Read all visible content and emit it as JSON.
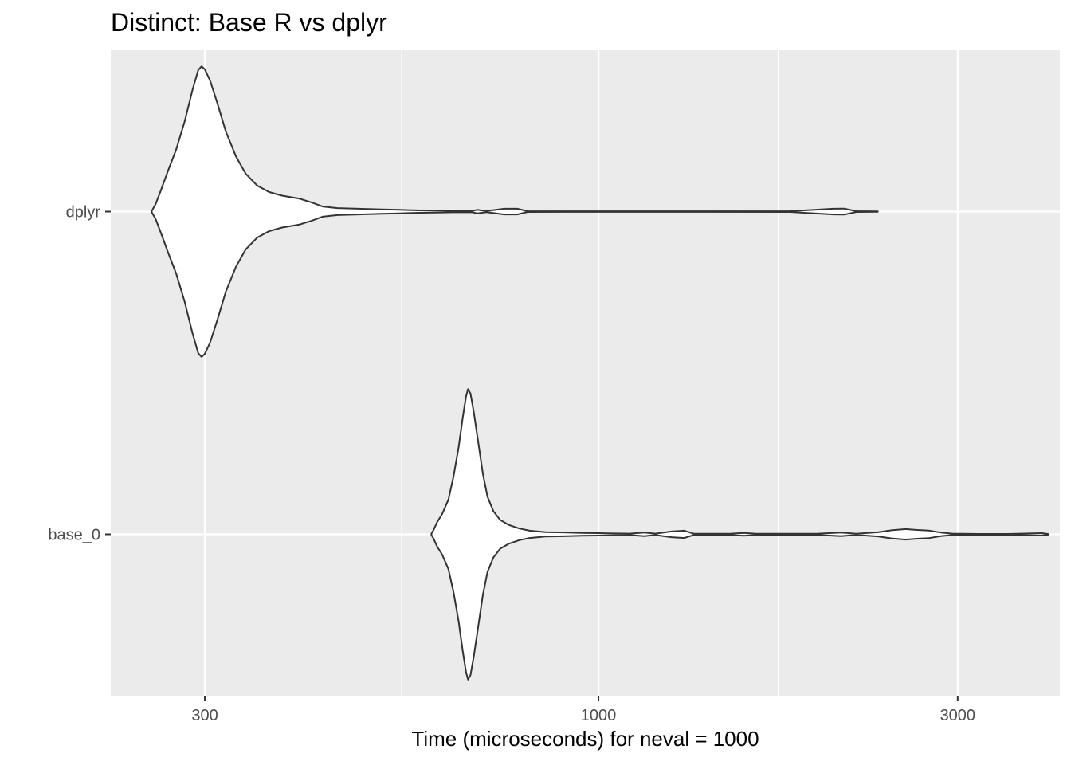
{
  "chart_data": {
    "type": "violin",
    "title": "Distinct: Base R vs dplyr",
    "xlabel": "Time (microseconds) for neval = 1000",
    "ylabel": "",
    "x_scale": "log10",
    "xlim": [
      225,
      4100
    ],
    "x_ticks": [
      {
        "value": 300,
        "label": "300"
      },
      {
        "value": 1000,
        "label": "1000"
      },
      {
        "value": 3000,
        "label": "3000"
      }
    ],
    "x_minor_ticks": [
      547.7,
      1732.1
    ],
    "categories": [
      "dplyr",
      "base_0"
    ],
    "grid": true,
    "background": "#ebebeb",
    "grid_color": "#ffffff",
    "fill": "#ffffff",
    "outline": "#333333",
    "series": [
      {
        "name": "dplyr",
        "density": [
          [
            255,
            0.004
          ],
          [
            258,
            0.05
          ],
          [
            262,
            0.14
          ],
          [
            268,
            0.28
          ],
          [
            275,
            0.43
          ],
          [
            282,
            0.62
          ],
          [
            289,
            0.84
          ],
          [
            294,
            0.975
          ],
          [
            297,
            1.0
          ],
          [
            300,
            0.98
          ],
          [
            305,
            0.9
          ],
          [
            312,
            0.74
          ],
          [
            320,
            0.55
          ],
          [
            330,
            0.38
          ],
          [
            340,
            0.26
          ],
          [
            352,
            0.18
          ],
          [
            365,
            0.135
          ],
          [
            380,
            0.11
          ],
          [
            400,
            0.09
          ],
          [
            415,
            0.065
          ],
          [
            430,
            0.035
          ],
          [
            450,
            0.024
          ],
          [
            480,
            0.02
          ],
          [
            510,
            0.016
          ],
          [
            545,
            0.012
          ],
          [
            580,
            0.008
          ],
          [
            620,
            0.006
          ],
          [
            650,
            0.004
          ],
          [
            680,
            0.005
          ],
          [
            690,
            0.012
          ],
          [
            710,
            0.004
          ],
          [
            750,
            0.02
          ],
          [
            780,
            0.02
          ],
          [
            805,
            0.003
          ],
          [
            900,
            0.002
          ],
          [
            1100,
            0.002
          ],
          [
            1400,
            0.002
          ],
          [
            1800,
            0.003
          ],
          [
            2050,
            0.02
          ],
          [
            2120,
            0.021
          ],
          [
            2200,
            0.003
          ],
          [
            2350,
            0.001
          ]
        ]
      },
      {
        "name": "base_0",
        "density": [
          [
            600,
            0.005
          ],
          [
            604,
            0.03
          ],
          [
            610,
            0.08
          ],
          [
            620,
            0.14
          ],
          [
            632,
            0.24
          ],
          [
            642,
            0.4
          ],
          [
            652,
            0.6
          ],
          [
            660,
            0.8
          ],
          [
            667,
            0.95
          ],
          [
            671,
            1.0
          ],
          [
            676,
            0.97
          ],
          [
            683,
            0.84
          ],
          [
            692,
            0.64
          ],
          [
            702,
            0.42
          ],
          [
            712,
            0.26
          ],
          [
            725,
            0.16
          ],
          [
            740,
            0.1
          ],
          [
            760,
            0.065
          ],
          [
            785,
            0.04
          ],
          [
            810,
            0.025
          ],
          [
            850,
            0.015
          ],
          [
            900,
            0.013
          ],
          [
            950,
            0.01
          ],
          [
            1000,
            0.008
          ],
          [
            1050,
            0.006
          ],
          [
            1100,
            0.005
          ],
          [
            1150,
            0.012
          ],
          [
            1190,
            0.005
          ],
          [
            1250,
            0.02
          ],
          [
            1300,
            0.025
          ],
          [
            1340,
            0.004
          ],
          [
            1500,
            0.005
          ],
          [
            1560,
            0.01
          ],
          [
            1620,
            0.004
          ],
          [
            1700,
            0.004
          ],
          [
            1950,
            0.004
          ],
          [
            2100,
            0.012
          ],
          [
            2200,
            0.004
          ],
          [
            2350,
            0.014
          ],
          [
            2450,
            0.028
          ],
          [
            2560,
            0.036
          ],
          [
            2650,
            0.03
          ],
          [
            2750,
            0.026
          ],
          [
            2850,
            0.012
          ],
          [
            2950,
            0.005
          ],
          [
            3200,
            0.003
          ],
          [
            3500,
            0.003
          ],
          [
            3880,
            0.008
          ],
          [
            3960,
            0.002
          ]
        ]
      }
    ]
  }
}
